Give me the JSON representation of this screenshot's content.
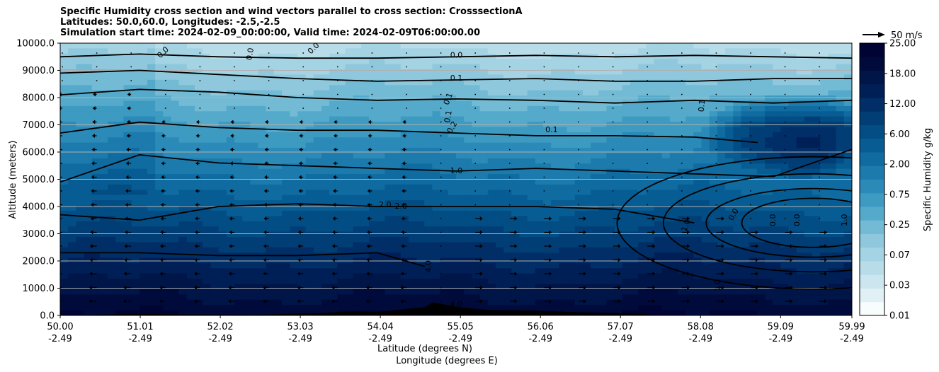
{
  "title": {
    "line1": "Specific Humidity cross section and wind vectors parallel to cross section: CrosssectionA",
    "line2": "Latitudes: 50.0,60.0, Longitudes: -2.5,-2.5",
    "line3": "Simulation start time: 2024-02-09_00:00:00, Valid time: 2024-02-09T06:00:00.00"
  },
  "chart_data": {
    "type": "heatmap",
    "subtype": "filled contour cross-section with contour lines and wind vectors",
    "ylabel": "Altitude (meters)",
    "xlabel_line1": "Latitude (degrees N)",
    "xlabel_line2": "Longitude (degrees E)",
    "ylim": [
      0,
      10000
    ],
    "y_ticks": [
      "0.0",
      "1000.0",
      "2000.0",
      "3000.0",
      "4000.0",
      "5000.0",
      "6000.0",
      "7000.0",
      "8000.0",
      "9000.0",
      "10000.0"
    ],
    "y_tick_values": [
      0,
      1000,
      2000,
      3000,
      4000,
      5000,
      6000,
      7000,
      8000,
      9000,
      10000
    ],
    "x_ticks_lat": [
      "50.00",
      "51.01",
      "52.02",
      "53.03",
      "54.04",
      "55.05",
      "56.06",
      "57.07",
      "58.08",
      "59.09",
      "59.99"
    ],
    "x_ticks_lon": [
      "-2.49",
      "-2.49",
      "-2.49",
      "-2.49",
      "-2.49",
      "-2.49",
      "-2.49",
      "-2.49",
      "-2.49",
      "-2.49",
      "-2.49"
    ],
    "x_tick_values": [
      50.0,
      51.01,
      52.02,
      53.03,
      54.04,
      55.05,
      56.06,
      57.07,
      58.08,
      59.09,
      59.99
    ],
    "xlim": [
      50.0,
      59.99
    ],
    "grid": "horizontal",
    "colorbar": {
      "label": "Specific Humidity g/kg",
      "levels": [
        "0.01",
        "0.03",
        "0.07",
        "0.25",
        "0.75",
        "2.00",
        "6.00",
        "12.00",
        "18.00",
        "25.00"
      ],
      "colors": [
        "#f7fcfd",
        "#e0f0f4",
        "#cbe6ee",
        "#b8dde9",
        "#a4d3e3",
        "#8fc8dc",
        "#73bbd4",
        "#55aacb",
        "#3d9ac1",
        "#2b8ab7",
        "#1c7bac",
        "#106ca0",
        "#075d93",
        "#034d85",
        "#023e76",
        "#012e66",
        "#001f56",
        "#001548",
        "#000b3c",
        "#000432"
      ]
    },
    "quiver_key": "50 m/s",
    "contour_labels": [
      "0.0",
      "0.0",
      "0.0",
      "0.0",
      "0.1",
      "0.1",
      "0.1",
      "0.1",
      "0.1",
      "0.2",
      "1.0",
      "2.0",
      "2.0",
      "4.0",
      "4.0",
      "1.0",
      "1.0",
      "0.0",
      "0.0",
      "0.0",
      "1.0"
    ],
    "contours": [
      {
        "level": "0.0",
        "x": [
          50.0,
          51.0,
          52.0,
          53.0,
          54.0,
          55.0,
          56.0,
          57.0,
          58.0,
          59.0,
          59.99
        ],
        "y": [
          9500,
          9600,
          9500,
          9450,
          9450,
          9500,
          9550,
          9500,
          9550,
          9500,
          9450
        ]
      },
      {
        "level": "0.1",
        "x": [
          50.0,
          51.0,
          52.0,
          53.0,
          54.0,
          55.0,
          56.0,
          57.0,
          58.0,
          59.0,
          59.99
        ],
        "y": [
          8900,
          9000,
          8850,
          8700,
          8600,
          8650,
          8700,
          8600,
          8600,
          8700,
          8700
        ]
      },
      {
        "level": "0.1",
        "x": [
          50.0,
          51.0,
          52.0,
          53.0,
          54.0,
          55.0,
          56.0,
          57.0,
          58.0,
          59.0,
          59.99
        ],
        "y": [
          8100,
          8300,
          8200,
          8000,
          7900,
          7950,
          7900,
          7800,
          7900,
          7800,
          7900
        ]
      },
      {
        "level": "0.2",
        "x": [
          50.0,
          51.0,
          52.0,
          53.0,
          54.0,
          55.0,
          56.0,
          57.0,
          58.0,
          58.8
        ],
        "y": [
          6700,
          7100,
          6900,
          6800,
          6800,
          6700,
          6600,
          6600,
          6550,
          6350
        ]
      },
      {
        "level": "1.0",
        "x": [
          50.0,
          51.0,
          52.0,
          53.0,
          54.0,
          55.0,
          56.0,
          57.0,
          58.0,
          59.0,
          59.99
        ],
        "y": [
          4900,
          5900,
          5600,
          5500,
          5400,
          5300,
          5400,
          5300,
          5200,
          5100,
          6100
        ]
      },
      {
        "level": "2.0",
        "x": [
          50.0,
          51.0,
          52.0,
          53.0,
          54.0,
          55.0,
          56.0,
          57.0,
          58.0
        ],
        "y": [
          3700,
          3500,
          4000,
          4100,
          4000,
          4000,
          4000,
          3900,
          3400
        ]
      },
      {
        "level": "4.0",
        "x": [
          50.0,
          51.0,
          52.0,
          53.0,
          54.0,
          54.6
        ],
        "y": [
          2300,
          2300,
          2200,
          2200,
          2300,
          1800
        ]
      }
    ],
    "terrain": {
      "x": [
        50.0,
        50.9,
        51.6,
        52.5,
        53.3,
        53.7,
        54.0,
        54.4,
        54.6,
        54.7,
        55.0,
        55.4,
        56.0,
        56.5,
        57.2,
        57.6
      ],
      "y": [
        0,
        60,
        40,
        30,
        90,
        150,
        120,
        250,
        300,
        480,
        320,
        200,
        180,
        120,
        80,
        0
      ]
    }
  }
}
